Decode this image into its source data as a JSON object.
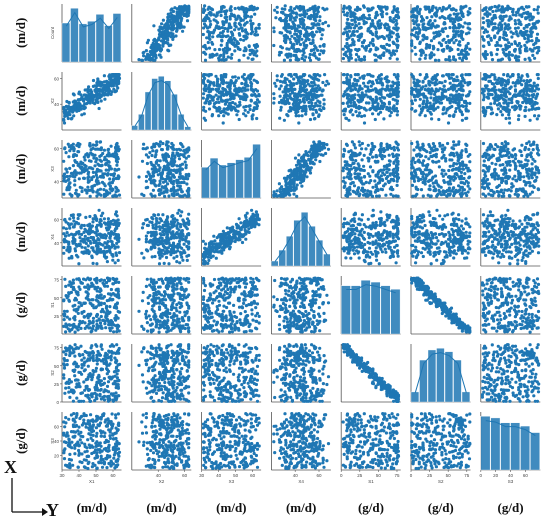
{
  "chart_data": {
    "type": "scatter",
    "variables": [
      "X1",
      "X2",
      "X3",
      "X4",
      "S1",
      "S2",
      "S3"
    ],
    "units_row": [
      "(m/d)",
      "(m/d)",
      "(m/d)",
      "(m/d)",
      "(g/d)",
      "(g/d)",
      "(g/d)"
    ],
    "units_col": [
      "(m/d)",
      "(m/d)",
      "(m/d)",
      "(m/d)",
      "(g/d)",
      "(g/d)",
      "(g/d)"
    ],
    "diagonal_ylabel_top": "Count",
    "ranges": {
      "X1": [
        30,
        65
      ],
      "X2": [
        20,
        65
      ],
      "X3": [
        30,
        65
      ],
      "X4": [
        20,
        70
      ],
      "S1": [
        0,
        80
      ],
      "S2": [
        0,
        80
      ],
      "S3": [
        0,
        80
      ]
    },
    "x_ticks": {
      "X1": [
        30,
        40,
        50,
        60
      ],
      "X2": [
        40,
        60
      ],
      "X3": [
        30,
        40,
        50,
        60
      ],
      "X4": [
        40,
        60
      ],
      "S1": [
        0,
        25,
        50,
        75
      ],
      "S2": [
        0,
        25,
        50,
        75
      ],
      "S3": [
        0,
        20,
        40,
        60
      ]
    },
    "y_ticks_left": {
      "X1": [],
      "X2": [
        40,
        60
      ],
      "X3": [
        40,
        60
      ],
      "X4": [
        40,
        60
      ],
      "S1": [
        25,
        50,
        75
      ],
      "S2": [
        0,
        25,
        50,
        75
      ],
      "S3": [
        20,
        40,
        60
      ]
    },
    "correlations": [
      {
        "pair": [
          "X1",
          "X2"
        ],
        "r": 0.9
      },
      {
        "pair": [
          "X3",
          "X4"
        ],
        "r": 0.9
      },
      {
        "pair": [
          "S1",
          "S2"
        ],
        "r": -0.97
      }
    ],
    "histogram_bins": {
      "X1": [
        45,
        62,
        44,
        47,
        55,
        42,
        56
      ],
      "X2": [
        4,
        14,
        34,
        46,
        48,
        44,
        32,
        14,
        3
      ],
      "X3": [
        40,
        52,
        43,
        46,
        50,
        53,
        70
      ],
      "X4": [
        5,
        16,
        30,
        46,
        54,
        40,
        26,
        12
      ],
      "S1": [
        54,
        54,
        60,
        58,
        54,
        50
      ],
      "S2": [
        12,
        50,
        62,
        64,
        60,
        50,
        12
      ],
      "S3": [
        66,
        64,
        58,
        58,
        54,
        46
      ]
    },
    "n_points": 300,
    "color": "#1f77b4"
  },
  "labels": {
    "axis_x_letter": "X",
    "axis_y_letter": "Y"
  }
}
